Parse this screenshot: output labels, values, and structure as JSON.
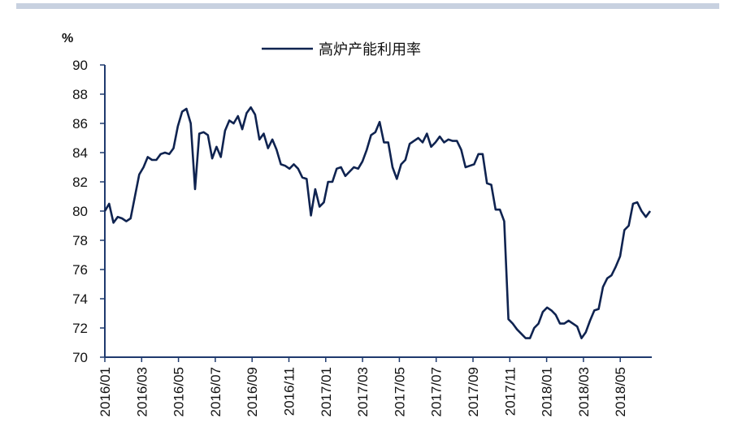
{
  "colors": {
    "line": "#0f2350",
    "axis": "#1f3a6e",
    "top_bar": "#c8d1e0"
  },
  "chart_data": {
    "type": "line",
    "title": "",
    "ylabel": "%",
    "xlabel": "",
    "ylim": [
      70,
      90
    ],
    "yticks": [
      70,
      72,
      74,
      76,
      78,
      80,
      82,
      84,
      86,
      88,
      90
    ],
    "xtick_labels": [
      "2016/01",
      "2016/03",
      "2016/05",
      "2016/07",
      "2016/09",
      "2016/11",
      "2017/01",
      "2017/03",
      "2017/05",
      "2017/07",
      "2017/09",
      "2017/11",
      "2018/01",
      "2018/03",
      "2018/05"
    ],
    "legend": {
      "position": "top-center",
      "entries": [
        "高炉产能利用率"
      ]
    },
    "x_frequency": "weekly, 2016/01 to 2018/06",
    "series": [
      {
        "name": "高炉产能利用率",
        "values": [
          80.0,
          80.5,
          79.2,
          79.6,
          79.5,
          79.3,
          79.5,
          81.0,
          82.5,
          83.0,
          83.7,
          83.5,
          83.5,
          83.9,
          84.0,
          83.9,
          84.3,
          85.8,
          86.8,
          87.0,
          86.0,
          81.5,
          85.3,
          85.4,
          85.2,
          83.6,
          84.4,
          83.7,
          85.5,
          86.2,
          86.0,
          86.5,
          85.6,
          86.7,
          87.1,
          86.6,
          84.9,
          85.3,
          84.3,
          84.9,
          84.2,
          83.2,
          83.1,
          82.9,
          83.2,
          82.9,
          82.3,
          82.2,
          79.7,
          81.5,
          80.3,
          80.6,
          82.0,
          82.0,
          82.9,
          83.0,
          82.4,
          82.7,
          83.0,
          82.9,
          83.4,
          84.2,
          85.2,
          85.4,
          86.1,
          84.7,
          84.7,
          83.0,
          82.2,
          83.2,
          83.5,
          84.6,
          84.8,
          85.0,
          84.7,
          85.3,
          84.4,
          84.7,
          85.1,
          84.7,
          84.9,
          84.8,
          84.8,
          84.2,
          83.0,
          83.1,
          83.2,
          83.9,
          83.9,
          81.9,
          81.8,
          80.1,
          80.1,
          79.3,
          72.6,
          72.3,
          71.9,
          71.6,
          71.3,
          71.3,
          72.0,
          72.3,
          73.1,
          73.4,
          73.2,
          72.9,
          72.3,
          72.3,
          72.5,
          72.3,
          72.1,
          71.3,
          71.7,
          72.5,
          73.2,
          73.3,
          74.8,
          75.4,
          75.6,
          76.2,
          76.9,
          78.7,
          79.0,
          80.5,
          80.6,
          80.0,
          79.6,
          80.0
        ]
      }
    ]
  }
}
